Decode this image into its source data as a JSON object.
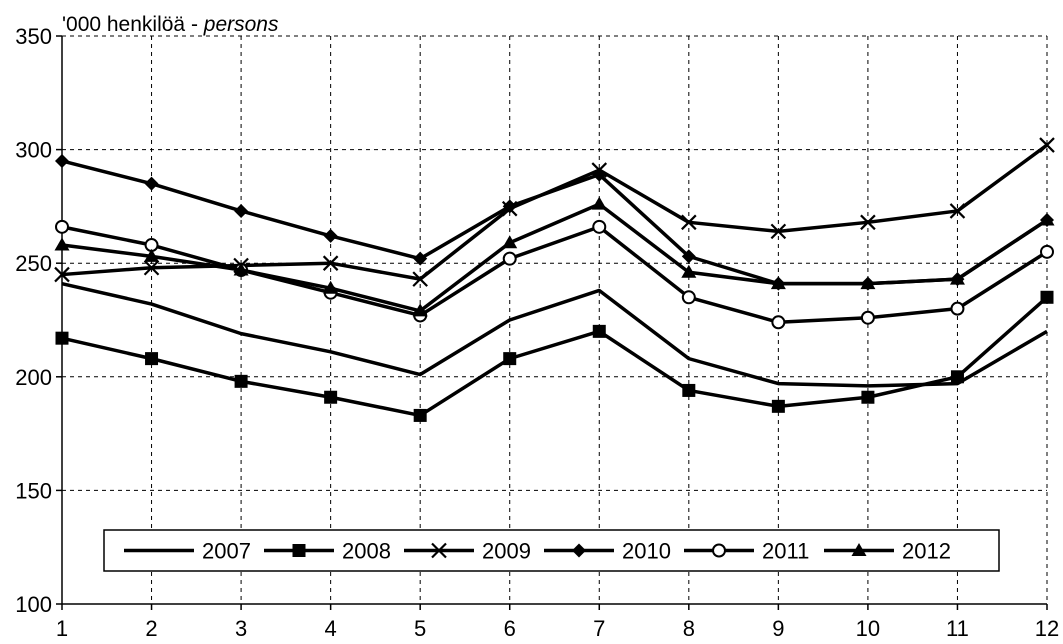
{
  "chart_data": {
    "type": "line",
    "unit_label": "'000 henkilöä - ",
    "unit_label_italic": "persons",
    "x": [
      1,
      2,
      3,
      4,
      5,
      6,
      7,
      8,
      9,
      10,
      11,
      12
    ],
    "ylim": [
      100,
      350
    ],
    "yticks": [
      100,
      150,
      200,
      250,
      300,
      350
    ],
    "grid": true,
    "legend_position": "bottom-inside",
    "series": [
      {
        "name": "2007",
        "marker": "none",
        "values": [
          241,
          232,
          219,
          211,
          201,
          225,
          238,
          208,
          197,
          196,
          197,
          220
        ]
      },
      {
        "name": "2008",
        "marker": "square",
        "values": [
          217,
          208,
          198,
          191,
          183,
          208,
          220,
          194,
          187,
          191,
          200,
          235
        ]
      },
      {
        "name": "2009",
        "marker": "x",
        "values": [
          245,
          248,
          249,
          250,
          243,
          274,
          291,
          268,
          264,
          268,
          273,
          302
        ]
      },
      {
        "name": "2010",
        "marker": "diamond",
        "values": [
          295,
          285,
          273,
          262,
          252,
          275,
          289,
          253,
          241,
          241,
          243,
          269
        ]
      },
      {
        "name": "2011",
        "marker": "circle",
        "values": [
          266,
          258,
          247,
          237,
          227,
          252,
          266,
          235,
          224,
          226,
          230,
          255
        ]
      },
      {
        "name": "2012",
        "marker": "triangle",
        "values": [
          258,
          253,
          247,
          239,
          229,
          259,
          276,
          246,
          241,
          241,
          243,
          269
        ]
      }
    ]
  }
}
